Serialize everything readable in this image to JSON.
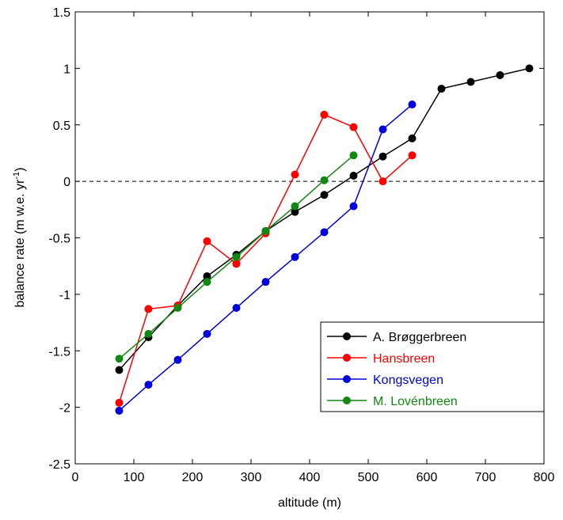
{
  "chart_data": {
    "type": "line",
    "xlabel": "altitude (m)",
    "ylabel": "balance rate (m w.e. yr",
    "ylabel_sup": "-1",
    "ylabel_end": ")",
    "xlim": [
      0,
      800
    ],
    "xticks": [
      0,
      100,
      200,
      300,
      400,
      500,
      600,
      700,
      800
    ],
    "ylim": [
      -2.5,
      1.5
    ],
    "yticks": [
      -2.5,
      -2,
      -1.5,
      -1,
      -0.5,
      0,
      0.5,
      1,
      1.5
    ],
    "reference_line": {
      "y": 0,
      "style": "dashed"
    },
    "legend": "lower right",
    "series": [
      {
        "name": "A. Brøggerbreen",
        "color": "#000000",
        "x": [
          75,
          125,
          175,
          225,
          275,
          325,
          375,
          425,
          475,
          525,
          575,
          625,
          675,
          725,
          775
        ],
        "values": [
          -1.67,
          -1.38,
          -1.1,
          -0.84,
          -0.65,
          -0.44,
          -0.27,
          -0.12,
          0.05,
          0.22,
          0.38,
          0.82,
          0.88,
          0.94,
          1.0
        ]
      },
      {
        "name": "Hansbreen",
        "color": "#ff0000",
        "x": [
          75,
          125,
          175,
          225,
          275,
          325,
          375,
          425,
          475,
          525,
          575
        ],
        "values": [
          -1.96,
          -1.13,
          -1.1,
          -0.53,
          -0.73,
          -0.46,
          0.06,
          0.59,
          0.48,
          0.0,
          0.23
        ]
      },
      {
        "name": "Kongsvegen",
        "color": "#0000dd",
        "x": [
          75,
          125,
          175,
          225,
          275,
          325,
          375,
          425,
          475,
          525,
          575
        ],
        "values": [
          -2.03,
          -1.8,
          -1.58,
          -1.35,
          -1.12,
          -0.89,
          -0.67,
          -0.45,
          -0.22,
          0.46,
          0.68
        ]
      },
      {
        "name": "M. Lovénbreen",
        "color": "#118811",
        "x": [
          75,
          125,
          175,
          225,
          275,
          325,
          375,
          425,
          475
        ],
        "values": [
          -1.57,
          -1.35,
          -1.12,
          -0.89,
          -0.67,
          -0.44,
          -0.22,
          0.01,
          0.23
        ]
      }
    ]
  }
}
